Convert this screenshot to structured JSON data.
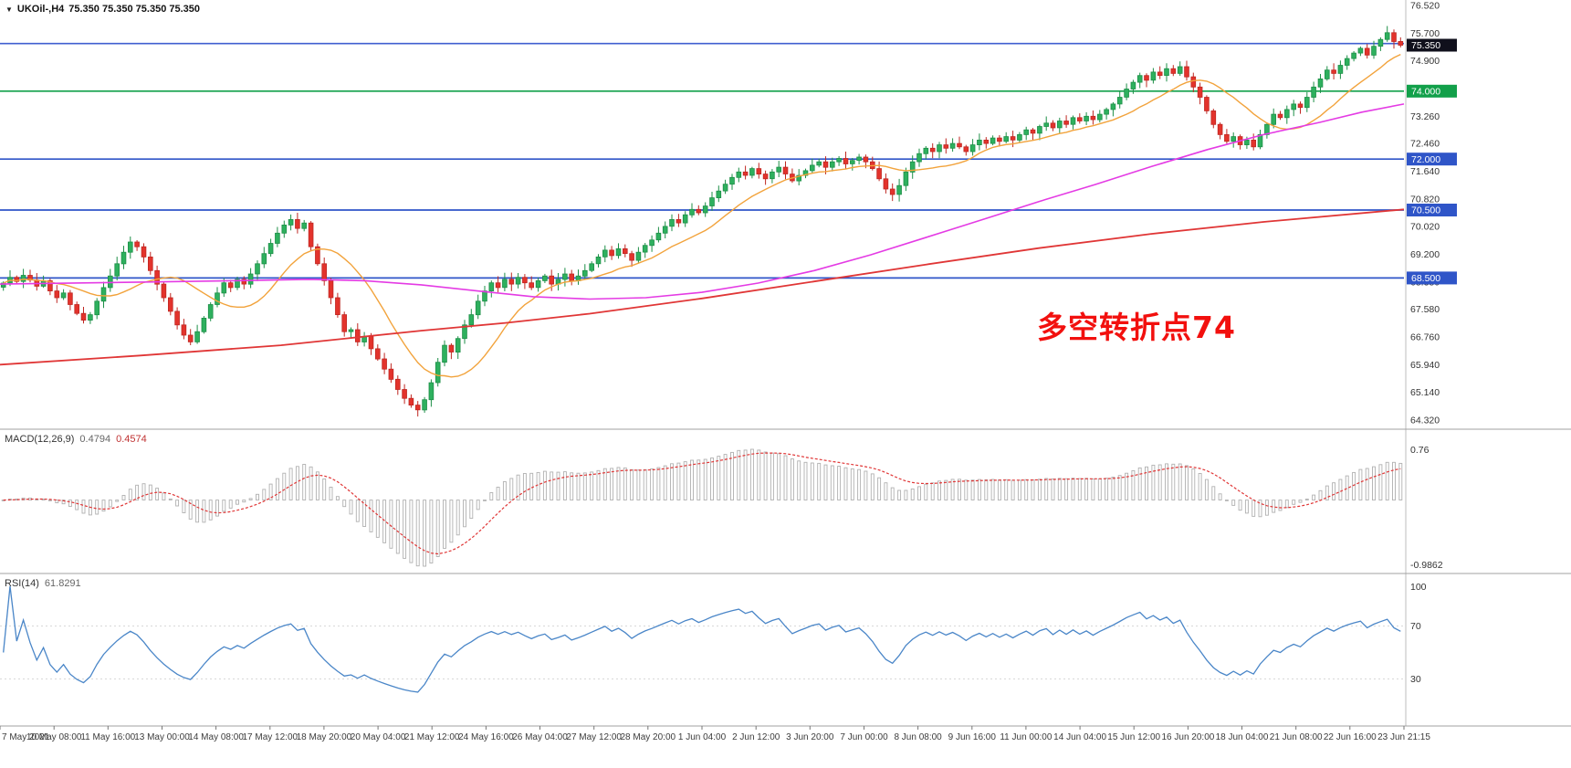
{
  "window": {
    "symbol_header": {
      "icon": "▼",
      "title": "UKOil-,H4",
      "ohlc_values": "75.350 75.350 75.350 75.350"
    }
  },
  "annotation": {
    "text": "多空转折点74",
    "color": "#f2100e"
  },
  "chart_data": {
    "type": "candlestick",
    "title": "UKOil- H4 chart with MACD and RSI",
    "symbol": "UKOil-",
    "timeframe": "H4",
    "price_axis": {
      "range": [
        64.32,
        76.52
      ],
      "tick_labels": [
        "76.520",
        "75.700",
        "74.900",
        "74.080",
        "73.260",
        "72.460",
        "71.640",
        "70.820",
        "70.020",
        "69.200",
        "68.380",
        "67.580",
        "66.760",
        "65.940",
        "65.140",
        "64.320"
      ]
    },
    "time_axis": {
      "tick_labels": [
        "7 May 2021",
        "10 May 08:00",
        "11 May 16:00",
        "13 May 00:00",
        "14 May 08:00",
        "17 May 12:00",
        "18 May 20:00",
        "20 May 04:00",
        "21 May 12:00",
        "24 May 16:00",
        "26 May 04:00",
        "27 May 12:00",
        "28 May 20:00",
        "1 Jun 04:00",
        "2 Jun 12:00",
        "3 Jun 20:00",
        "7 Jun 00:00",
        "8 Jun 08:00",
        "9 Jun 16:00",
        "11 Jun 00:00",
        "14 Jun 04:00",
        "15 Jun 12:00",
        "16 Jun 20:00",
        "18 Jun 04:00",
        "21 Jun 08:00",
        "22 Jun 16:00",
        "23 Jun 21:15"
      ]
    },
    "series": {
      "closes": [
        68.35,
        68.52,
        68.4,
        68.58,
        68.44,
        68.26,
        68.42,
        68.12,
        67.92,
        68.06,
        67.72,
        67.46,
        67.26,
        67.42,
        67.82,
        68.22,
        68.56,
        68.92,
        69.26,
        69.56,
        69.42,
        69.12,
        68.72,
        68.32,
        67.92,
        67.52,
        67.12,
        66.82,
        66.62,
        66.92,
        67.32,
        67.72,
        68.06,
        68.36,
        68.22,
        68.46,
        68.32,
        68.62,
        68.92,
        69.22,
        69.52,
        69.82,
        70.06,
        70.22,
        69.96,
        70.12,
        69.42,
        68.92,
        68.42,
        67.92,
        67.42,
        66.92,
        66.98,
        66.62,
        66.78,
        66.42,
        66.12,
        65.82,
        65.52,
        65.22,
        64.96,
        64.76,
        64.62,
        64.92,
        65.42,
        66.02,
        66.52,
        66.32,
        66.72,
        67.12,
        67.42,
        67.82,
        68.12,
        68.36,
        68.22,
        68.46,
        68.32,
        68.52,
        68.36,
        68.22,
        68.42,
        68.56,
        68.32,
        68.46,
        68.62,
        68.42,
        68.56,
        68.72,
        68.92,
        69.12,
        69.32,
        69.16,
        69.36,
        69.22,
        69.02,
        69.26,
        69.46,
        69.62,
        69.82,
        70.02,
        70.22,
        70.12,
        70.36,
        70.52,
        70.42,
        70.62,
        70.86,
        71.06,
        71.26,
        71.46,
        71.62,
        71.52,
        71.72,
        71.56,
        71.42,
        71.62,
        71.76,
        71.56,
        71.36,
        71.52,
        71.66,
        71.82,
        71.92,
        71.76,
        71.92,
        72.02,
        71.86,
        71.96,
        72.06,
        71.92,
        71.72,
        71.42,
        71.12,
        70.96,
        71.22,
        71.62,
        71.92,
        72.16,
        72.32,
        72.22,
        72.42,
        72.32,
        72.46,
        72.36,
        72.22,
        72.42,
        72.56,
        72.46,
        72.62,
        72.52,
        72.66,
        72.56,
        72.72,
        72.86,
        72.76,
        72.96,
        73.06,
        72.92,
        73.12,
        73.02,
        73.22,
        73.12,
        73.26,
        73.16,
        73.32,
        73.46,
        73.62,
        73.82,
        74.06,
        74.26,
        74.46,
        74.32,
        74.56,
        74.46,
        74.66,
        74.52,
        74.72,
        74.42,
        74.12,
        73.82,
        73.42,
        73.02,
        72.72,
        72.52,
        72.66,
        72.42,
        72.56,
        72.36,
        72.72,
        73.02,
        73.32,
        73.22,
        73.46,
        73.62,
        73.52,
        73.82,
        74.12,
        74.36,
        74.62,
        74.52,
        74.76,
        74.96,
        75.12,
        75.26,
        75.06,
        75.32,
        75.52,
        75.72,
        75.46,
        75.35
      ]
    },
    "overlays": {
      "horizontal_lines": [
        {
          "price": 75.4,
          "color": "#3f5fd0",
          "label": null
        },
        {
          "price": 74.0,
          "color": "#12a04a",
          "label": "74.000"
        },
        {
          "price": 72.0,
          "color": "#2f55c8",
          "label": "72.000"
        },
        {
          "price": 70.5,
          "color": "#2f55c8",
          "label": "70.500"
        },
        {
          "price": 68.5,
          "color": "#2f55c8",
          "label": "68.500"
        }
      ],
      "current_price": {
        "price": 75.35,
        "label": "75.350",
        "badge_color": "#10101c"
      },
      "ma_fast": {
        "color": "#f2a33c",
        "period": 13
      },
      "ma_mid": {
        "color": "#e43be4",
        "points": [
          [
            0,
            68.32
          ],
          [
            0.1,
            68.38
          ],
          [
            0.165,
            68.42
          ],
          [
            0.22,
            68.46
          ],
          [
            0.26,
            68.42
          ],
          [
            0.3,
            68.3
          ],
          [
            0.34,
            68.12
          ],
          [
            0.38,
            67.95
          ],
          [
            0.42,
            67.88
          ],
          [
            0.46,
            67.92
          ],
          [
            0.5,
            68.08
          ],
          [
            0.54,
            68.35
          ],
          [
            0.58,
            68.72
          ],
          [
            0.62,
            69.18
          ],
          [
            0.66,
            69.7
          ],
          [
            0.7,
            70.22
          ],
          [
            0.74,
            70.75
          ],
          [
            0.78,
            71.25
          ],
          [
            0.82,
            71.78
          ],
          [
            0.86,
            72.28
          ],
          [
            0.9,
            72.72
          ],
          [
            0.94,
            73.08
          ],
          [
            0.97,
            73.38
          ],
          [
            1,
            73.62
          ]
        ]
      },
      "ma_slow": {
        "color": "#e03636",
        "points": [
          [
            0,
            65.95
          ],
          [
            0.1,
            66.22
          ],
          [
            0.2,
            66.52
          ],
          [
            0.3,
            66.95
          ],
          [
            0.36,
            67.18
          ],
          [
            0.42,
            67.45
          ],
          [
            0.5,
            67.9
          ],
          [
            0.58,
            68.4
          ],
          [
            0.66,
            68.9
          ],
          [
            0.74,
            69.38
          ],
          [
            0.82,
            69.8
          ],
          [
            0.9,
            70.15
          ],
          [
            1,
            70.52
          ]
        ]
      }
    },
    "indicators": {
      "macd": {
        "name": "MACD(12,26,9)",
        "value_main": "0.4794",
        "value_signal": "0.4574",
        "fast": 12,
        "slow": 26,
        "signal": 9,
        "axis_max_label": "0.76",
        "axis_min_label": "-0.9862",
        "histogram_color": "#b0b0b0",
        "signal_color": "#e03636"
      },
      "rsi": {
        "name": "RSI(14)",
        "value": "61.8291",
        "period": 14,
        "axis_top_label": "100",
        "levels": [
          70,
          30
        ],
        "level_labels": [
          "70",
          "30"
        ],
        "line_color": "#4a86c8"
      }
    },
    "candle_colors": {
      "up_fill": "#2eb05e",
      "up_stroke": "#1d8f47",
      "down_fill": "#e3332c",
      "down_stroke": "#bf2722"
    }
  }
}
